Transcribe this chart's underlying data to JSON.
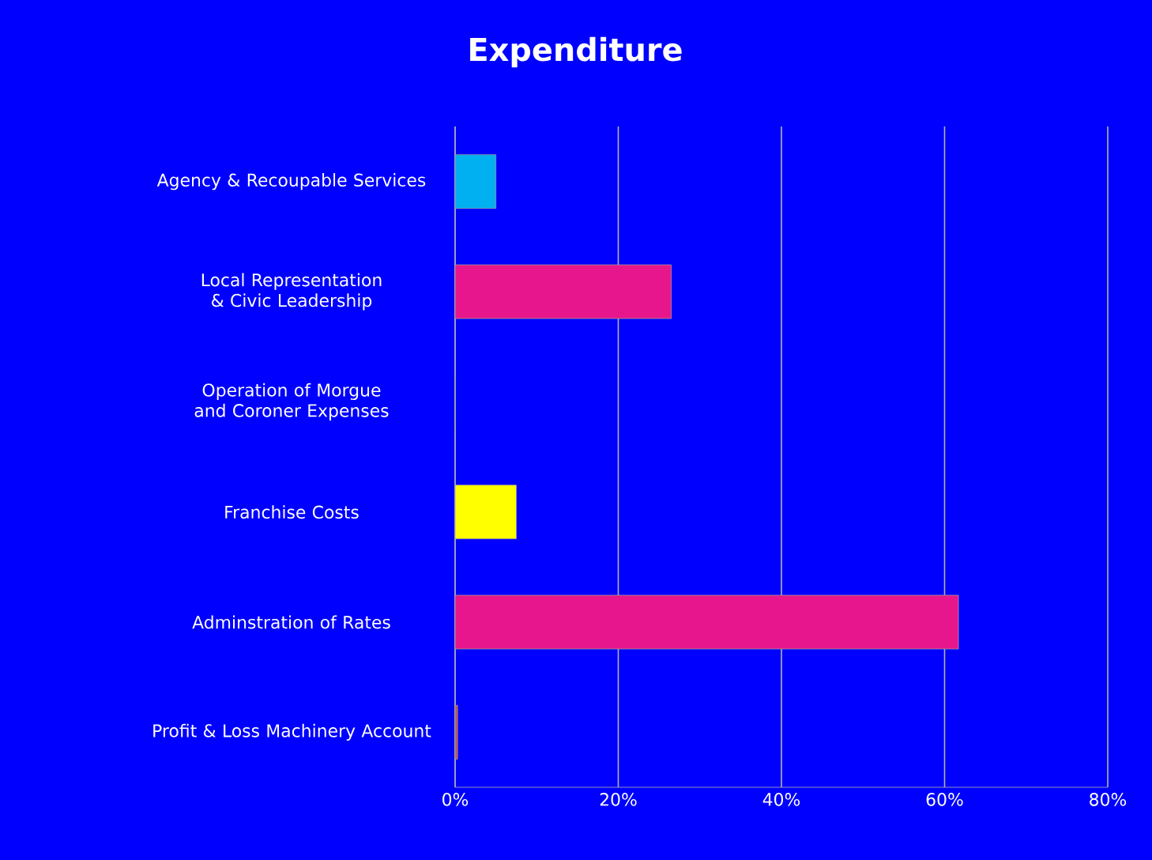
{
  "chart_data": {
    "type": "bar",
    "orientation": "horizontal",
    "title": "Expenditure",
    "categories": [
      "Agency & Recoupable Services",
      "Local Representation & Civic Leadership",
      "Operation of Morgue and Coroner Expenses",
      "Franchise Costs",
      "Adminstration of Rates",
      "Profit & Loss Machinery Account"
    ],
    "values": [
      5.0,
      26.5,
      0,
      7.5,
      61.7,
      0.3
    ],
    "colors": [
      "#00b0f0",
      "#e8168c",
      "#e8168c",
      "#ffff00",
      "#e8168c",
      "#c0504d"
    ],
    "xlim": [
      0,
      80
    ],
    "xticks": [
      {
        "value": 0,
        "label": "0%"
      },
      {
        "value": 20,
        "label": "20%"
      },
      {
        "value": 40,
        "label": "40%"
      },
      {
        "value": 60,
        "label": "60%"
      },
      {
        "value": 80,
        "label": "80%"
      }
    ],
    "grid": "x"
  }
}
